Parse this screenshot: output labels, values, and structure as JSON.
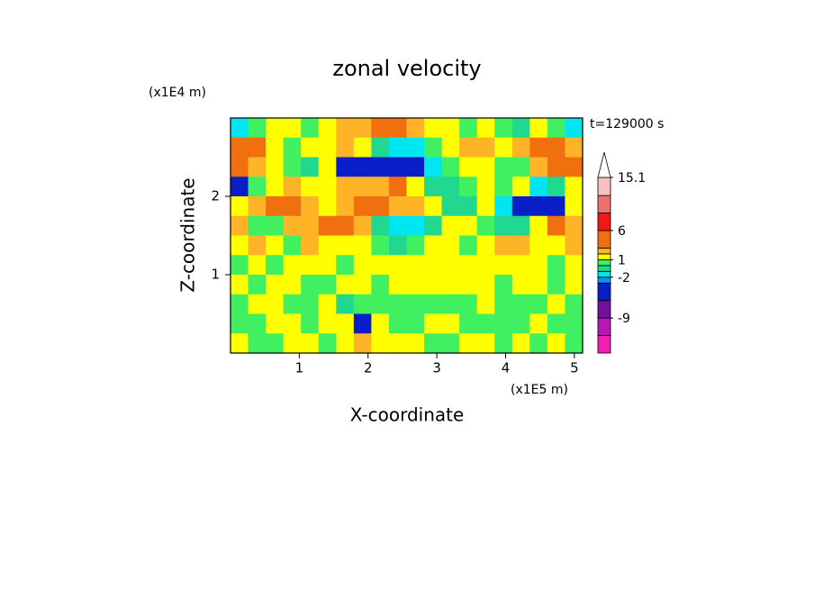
{
  "chart_data": {
    "type": "contour",
    "title": "zonal velocity",
    "x_label": "X-coordinate",
    "y_label": "Z-coordinate",
    "x_unit_label": "(x1E5 m)",
    "y_unit_label": "(x1E4 m)",
    "annotation": "t=129000 s",
    "xlim": [
      0,
      5.12
    ],
    "ylim": [
      0,
      3
    ],
    "xticks": [
      1,
      2,
      3,
      4,
      5
    ],
    "yticks": [
      1,
      2
    ],
    "x": [
      0.128,
      0.384,
      0.64,
      0.896,
      1.152,
      1.408,
      1.664,
      1.92,
      2.176,
      2.432,
      2.688,
      2.944,
      3.2,
      3.456,
      3.712,
      3.968,
      4.224,
      4.48,
      4.736,
      4.992
    ],
    "y": [
      2.875,
      2.625,
      2.375,
      2.125,
      1.875,
      1.625,
      1.375,
      1.125,
      0.875,
      0.625,
      0.375,
      0.125
    ],
    "z": [
      [
        -1.5,
        0.5,
        1.5,
        1.5,
        0.5,
        1.5,
        2.5,
        2.5,
        3.5,
        3.5,
        2.5,
        1.5,
        1.5,
        0.5,
        1.5,
        0.5,
        -0.5,
        1.5,
        0.5,
        -1.5
      ],
      [
        4,
        3.5,
        1.5,
        0.5,
        1.5,
        1.5,
        2.5,
        1.5,
        -0.5,
        -1.5,
        -1.5,
        0.5,
        1.5,
        2.5,
        2.5,
        1.5,
        2.5,
        4,
        4,
        2.5
      ],
      [
        4,
        2.5,
        1.5,
        0.5,
        -0.5,
        1.5,
        -4,
        -4,
        -4,
        -4,
        -4,
        -1.5,
        0.5,
        1.5,
        1.5,
        0.5,
        0.5,
        2.5,
        4,
        4
      ],
      [
        -4,
        0.5,
        1.5,
        2.5,
        1.5,
        1.5,
        2.5,
        2.5,
        2.5,
        3.5,
        1.5,
        -0.5,
        -0.5,
        0.5,
        1.5,
        0.5,
        1.5,
        -1.5,
        -0.5,
        1.5
      ],
      [
        1.5,
        2.5,
        3.5,
        4,
        2.5,
        1.5,
        2.5,
        4,
        4,
        2.5,
        2.5,
        1.5,
        -0.5,
        -0.5,
        1.5,
        -1.5,
        -4,
        -4,
        -4,
        1.5
      ],
      [
        2.5,
        0.5,
        0.5,
        2.5,
        2.5,
        3.5,
        3.5,
        2.5,
        -0.5,
        -1.5,
        -1.5,
        -0.5,
        1.5,
        1.5,
        0.5,
        -0.5,
        -0.5,
        1.5,
        3.5,
        2.5
      ],
      [
        1.5,
        2.5,
        1.5,
        0.5,
        2.5,
        1.5,
        1.5,
        1.5,
        0.5,
        -0.5,
        0.5,
        1.5,
        1.5,
        0.5,
        1.5,
        2.5,
        2.5,
        1.5,
        1.5,
        2.5
      ],
      [
        0.5,
        1.5,
        0.5,
        1.5,
        1.5,
        1.5,
        0.5,
        1.5,
        1.5,
        1.5,
        1.5,
        1.5,
        1.5,
        1.5,
        1.5,
        1.5,
        1.5,
        1.5,
        0.5,
        1.5
      ],
      [
        1.5,
        0.5,
        1.5,
        1.5,
        0.5,
        0.5,
        1.5,
        1.5,
        0.5,
        1.5,
        1.5,
        1.5,
        1.5,
        1.5,
        1.5,
        0.5,
        1.5,
        1.5,
        0.5,
        1.5
      ],
      [
        0.5,
        1.5,
        1.5,
        0.5,
        0.5,
        1.5,
        -0.5,
        0.5,
        0.5,
        0.5,
        0.5,
        0.5,
        0.5,
        0.5,
        1.5,
        0.5,
        0.5,
        0.5,
        1.5,
        0.5
      ],
      [
        0.5,
        0.5,
        1.5,
        1.5,
        0.5,
        1.5,
        1.5,
        -4,
        1.5,
        0.5,
        0.5,
        1.5,
        1.5,
        0.5,
        0.5,
        0.5,
        0.5,
        1.5,
        0.5,
        0.5
      ],
      [
        1.5,
        0.5,
        0.5,
        1.5,
        1.5,
        0.5,
        1.5,
        2.5,
        1.5,
        1.5,
        1.5,
        0.5,
        0.5,
        1.5,
        1.5,
        0.5,
        1.5,
        0.5,
        1.5,
        0.5
      ]
    ],
    "levels": [
      -15,
      -12,
      -9,
      -6,
      -3,
      -2,
      -1,
      0,
      1,
      2,
      3,
      6,
      9,
      12,
      15.1
    ],
    "colors": [
      "#f020b0",
      "#b818b0",
      "#7010a0",
      "#0a1ec8",
      "#0096ff",
      "#00e6f0",
      "#20d890",
      "#40f060",
      "#ffff00",
      "#ffb428",
      "#f07010",
      "#f01818",
      "#f07070",
      "#f8c0c0"
    ],
    "colorbar_ticks": [
      15.1,
      6,
      1,
      -2,
      -9
    ]
  }
}
